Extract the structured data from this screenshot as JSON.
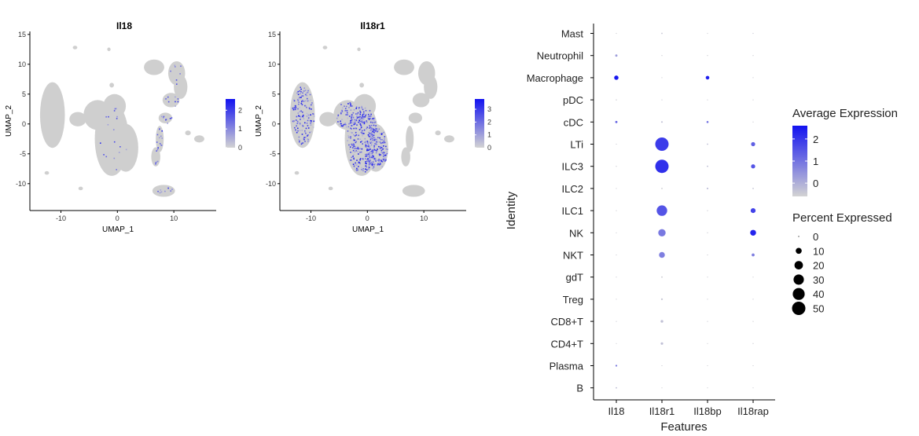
{
  "colors": {
    "low": "#d3d3d3",
    "high": "#1212f0",
    "island": "#cfcfcf"
  },
  "chart_data": [
    {
      "type": "scatter",
      "title": "Il18",
      "xlabel": "UMAP_1",
      "ylabel": "UMAP_2",
      "x_ticks": [
        "-10",
        "0",
        "10"
      ],
      "y_ticks": [
        "15",
        "10",
        "5",
        "0",
        "-5",
        "-10"
      ],
      "xlim": [
        -15.5,
        17.5
      ],
      "ylim": [
        -14.5,
        15.5
      ],
      "colorbar_ticks": [
        "2",
        "1",
        "0"
      ],
      "colorbar_range": [
        0,
        2.6
      ],
      "expression_pattern": "sparse"
    },
    {
      "type": "scatter",
      "title": "Il18r1",
      "xlabel": "UMAP_1",
      "ylabel": "UMAP_2",
      "x_ticks": [
        "-10",
        "0",
        "10"
      ],
      "y_ticks": [
        "15",
        "10",
        "5",
        "0",
        "-5",
        "-10"
      ],
      "xlim": [
        -15.5,
        17.5
      ],
      "ylim": [
        -14.5,
        15.5
      ],
      "colorbar_ticks": [
        "3",
        "2",
        "1",
        "0"
      ],
      "colorbar_range": [
        0,
        3.8
      ],
      "expression_pattern": "dense_central"
    },
    {
      "type": "dot",
      "xlabel": "Features",
      "ylabel": "Identity",
      "features": [
        "Il18",
        "Il18r1",
        "Il18bp",
        "Il18rap"
      ],
      "identities": [
        "Mast",
        "Neutrophil",
        "Macrophage",
        "pDC",
        "cDC",
        "LTi",
        "ILC3",
        "ILC2",
        "ILC1",
        "NK",
        "NKT",
        "gdT",
        "Treg",
        "CD8+T",
        "CD4+T",
        "Plasma",
        "B"
      ],
      "pct_expressed": [
        [
          0.3,
          0.6,
          0.2,
          0.3
        ],
        [
          1.5,
          0.3,
          0.3,
          0.3
        ],
        [
          5.5,
          0.2,
          3.8,
          0.3
        ],
        [
          0.4,
          0.2,
          0.2,
          0.2
        ],
        [
          1.5,
          0.8,
          1.2,
          0.3
        ],
        [
          0.3,
          52,
          0.6,
          5
        ],
        [
          0.3,
          52,
          0.6,
          5
        ],
        [
          0.2,
          0.6,
          0.8,
          0.6
        ],
        [
          0.2,
          32,
          0.3,
          7
        ],
        [
          0.2,
          16,
          0.3,
          10
        ],
        [
          0.2,
          10,
          0.3,
          2.5
        ],
        [
          0.2,
          0.6,
          0.2,
          0.2
        ],
        [
          0.2,
          0.9,
          0.2,
          0.3
        ],
        [
          0.2,
          2.0,
          0.2,
          0.3
        ],
        [
          0.2,
          1.8,
          0.2,
          0.3
        ],
        [
          1.0,
          0.3,
          0.2,
          0.3
        ],
        [
          0.6,
          0.2,
          0.2,
          0.2
        ]
      ],
      "avg_expression": [
        [
          -0.5,
          -0.4,
          -0.5,
          -0.4
        ],
        [
          0.3,
          -0.5,
          -0.5,
          -0.5
        ],
        [
          2.5,
          -0.5,
          2.4,
          -0.5
        ],
        [
          -0.5,
          -0.5,
          -0.5,
          -0.5
        ],
        [
          1.2,
          -0.3,
          1.0,
          -0.5
        ],
        [
          -0.5,
          1.9,
          -0.3,
          1.3
        ],
        [
          -0.5,
          2.1,
          -0.3,
          1.5
        ],
        [
          -0.5,
          -0.5,
          -0.2,
          -0.4
        ],
        [
          -0.5,
          1.5,
          -0.5,
          1.8
        ],
        [
          -0.5,
          0.9,
          -0.5,
          2.3
        ],
        [
          -0.5,
          0.8,
          -0.5,
          0.8
        ],
        [
          -0.5,
          -0.5,
          -0.5,
          -0.5
        ],
        [
          -0.5,
          -0.4,
          -0.5,
          -0.5
        ],
        [
          -0.5,
          -0.3,
          -0.5,
          -0.5
        ],
        [
          -0.5,
          -0.3,
          -0.5,
          -0.5
        ],
        [
          0.8,
          -0.5,
          -0.5,
          -0.5
        ],
        [
          -0.3,
          -0.5,
          -0.5,
          -0.5
        ]
      ],
      "color_range": [
        -0.6,
        2.6
      ],
      "legend": {
        "avg_title": "Average Expression",
        "avg_ticks": [
          "2",
          "1",
          "0"
        ],
        "pct_title": "Percent Expressed",
        "pct_values": [
          0,
          10,
          20,
          30,
          40,
          50
        ],
        "pct_labels": [
          "0",
          "10",
          "20",
          "30",
          "40",
          "50"
        ]
      }
    }
  ]
}
